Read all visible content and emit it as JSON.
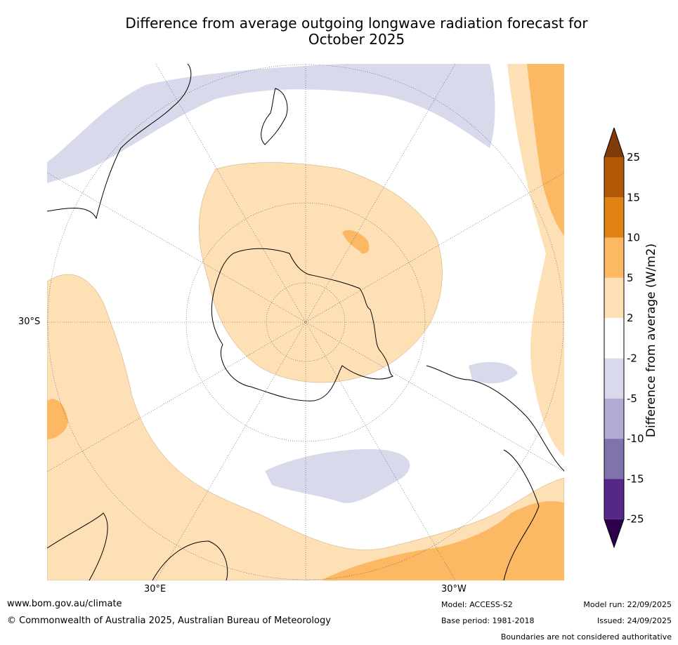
{
  "title_line1": "Difference from average outgoing longwave radiation forecast for",
  "title_line2": "October 2025",
  "map": {
    "projection": "south-polar-stereographic",
    "lat_label": "30°S",
    "lon_label_left": "30°E",
    "lon_label_right": "30°W"
  },
  "colorbar": {
    "label": "Difference from average (W/m2)",
    "ticks": [
      "25",
      "15",
      "10",
      "5",
      "2",
      "-2",
      "-5",
      "-10",
      "-15",
      "-25"
    ],
    "bins": [
      {
        "range": "15 to 25",
        "color": "#b35806"
      },
      {
        "range": "10 to 15",
        "color": "#e08214"
      },
      {
        "range": "5 to 10",
        "color": "#fdb863"
      },
      {
        "range": "2 to 5",
        "color": "#fee0b6"
      },
      {
        "range": "-2 to 2",
        "color": "#ffffff"
      },
      {
        "range": "-5 to -2",
        "color": "#d8daeb"
      },
      {
        "range": "-10 to -5",
        "color": "#b2abd2"
      },
      {
        "range": "-15 to -10",
        "color": "#8073ac"
      },
      {
        "range": "-25 to -15",
        "color": "#542788"
      }
    ],
    "top_extend_color": "#7f3b08",
    "bottom_extend_color": "#2d004b"
  },
  "footer": {
    "website": "www.bom.gov.au/climate",
    "copyright": "© Commonwealth of Australia 2025, Australian Bureau of Meteorology",
    "model": "Model: ACCESS-S2",
    "base_period": "Base period: 1981-2018",
    "model_run": "Model run: 22/09/2025",
    "issued": "Issued: 24/09/2025",
    "disclaimer": "Boundaries are not considered authoritative"
  }
}
